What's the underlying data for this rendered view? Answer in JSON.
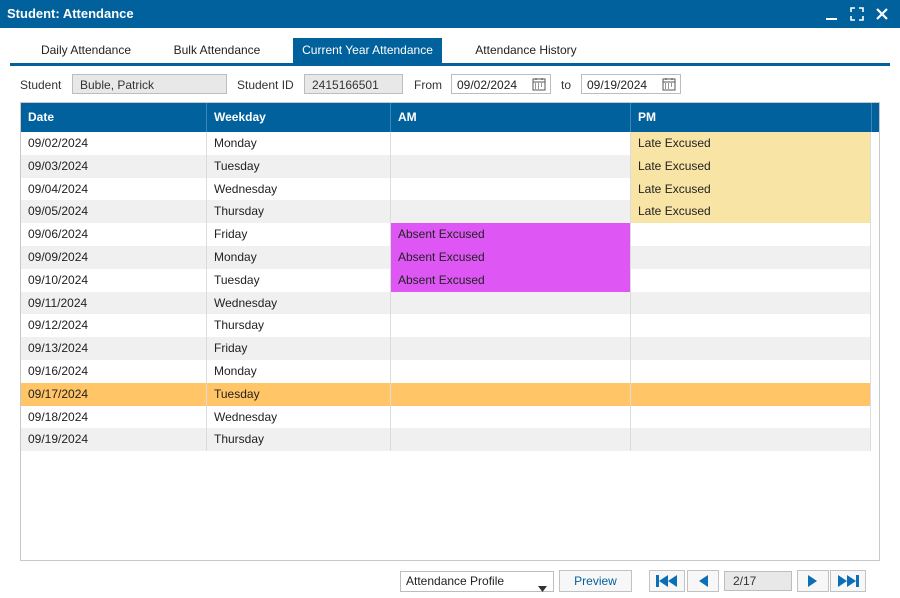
{
  "window": {
    "title": "Student: Attendance"
  },
  "tabs": [
    {
      "label": "Daily Attendance"
    },
    {
      "label": "Bulk Attendance"
    },
    {
      "label": "Current Year Attendance",
      "active": true
    },
    {
      "label": "Attendance History"
    }
  ],
  "filters": {
    "student_label": "Student",
    "student_value": "Buble, Patrick",
    "student_id_label": "Student ID",
    "student_id_value": "2415166501",
    "from_label": "From",
    "from_value": "09/02/2024",
    "to_label": "to",
    "to_value": "09/19/2024"
  },
  "grid": {
    "columns": [
      "Date",
      "Weekday",
      "AM",
      "PM"
    ],
    "rows": [
      {
        "date": "09/02/2024",
        "weekday": "Monday",
        "am": "",
        "pm": "Late Excused"
      },
      {
        "date": "09/03/2024",
        "weekday": "Tuesday",
        "am": "",
        "pm": "Late Excused"
      },
      {
        "date": "09/04/2024",
        "weekday": "Wednesday",
        "am": "",
        "pm": "Late Excused"
      },
      {
        "date": "09/05/2024",
        "weekday": "Thursday",
        "am": "",
        "pm": "Late Excused"
      },
      {
        "date": "09/06/2024",
        "weekday": "Friday",
        "am": "Absent Excused",
        "pm": ""
      },
      {
        "date": "09/09/2024",
        "weekday": "Monday",
        "am": "Absent Excused",
        "pm": ""
      },
      {
        "date": "09/10/2024",
        "weekday": "Tuesday",
        "am": "Absent Excused",
        "pm": ""
      },
      {
        "date": "09/11/2024",
        "weekday": "Wednesday",
        "am": "",
        "pm": ""
      },
      {
        "date": "09/12/2024",
        "weekday": "Thursday",
        "am": "",
        "pm": ""
      },
      {
        "date": "09/13/2024",
        "weekday": "Friday",
        "am": "",
        "pm": ""
      },
      {
        "date": "09/16/2024",
        "weekday": "Monday",
        "am": "",
        "pm": ""
      },
      {
        "date": "09/17/2024",
        "weekday": "Tuesday",
        "am": "",
        "pm": "",
        "selected": true
      },
      {
        "date": "09/18/2024",
        "weekday": "Wednesday",
        "am": "",
        "pm": ""
      },
      {
        "date": "09/19/2024",
        "weekday": "Thursday",
        "am": "",
        "pm": ""
      }
    ]
  },
  "status_colors": {
    "Late Excused": "#f8e4a4",
    "Absent Excused": "#de57f4",
    "selected_row": "#ffc566",
    "accent": "#00619c"
  },
  "footer": {
    "profile_select_value": "Attendance Profile",
    "preview_label": "Preview",
    "pager_value": "2/17"
  },
  "icons": {
    "minimize": "minimize-icon",
    "maximize": "maximize-icon",
    "close": "close-icon",
    "calendar": "calendar-icon",
    "dropdown": "chevron-down-icon",
    "first": "first-page-icon",
    "prev": "previous-page-icon",
    "next": "next-page-icon",
    "last": "last-page-icon"
  }
}
